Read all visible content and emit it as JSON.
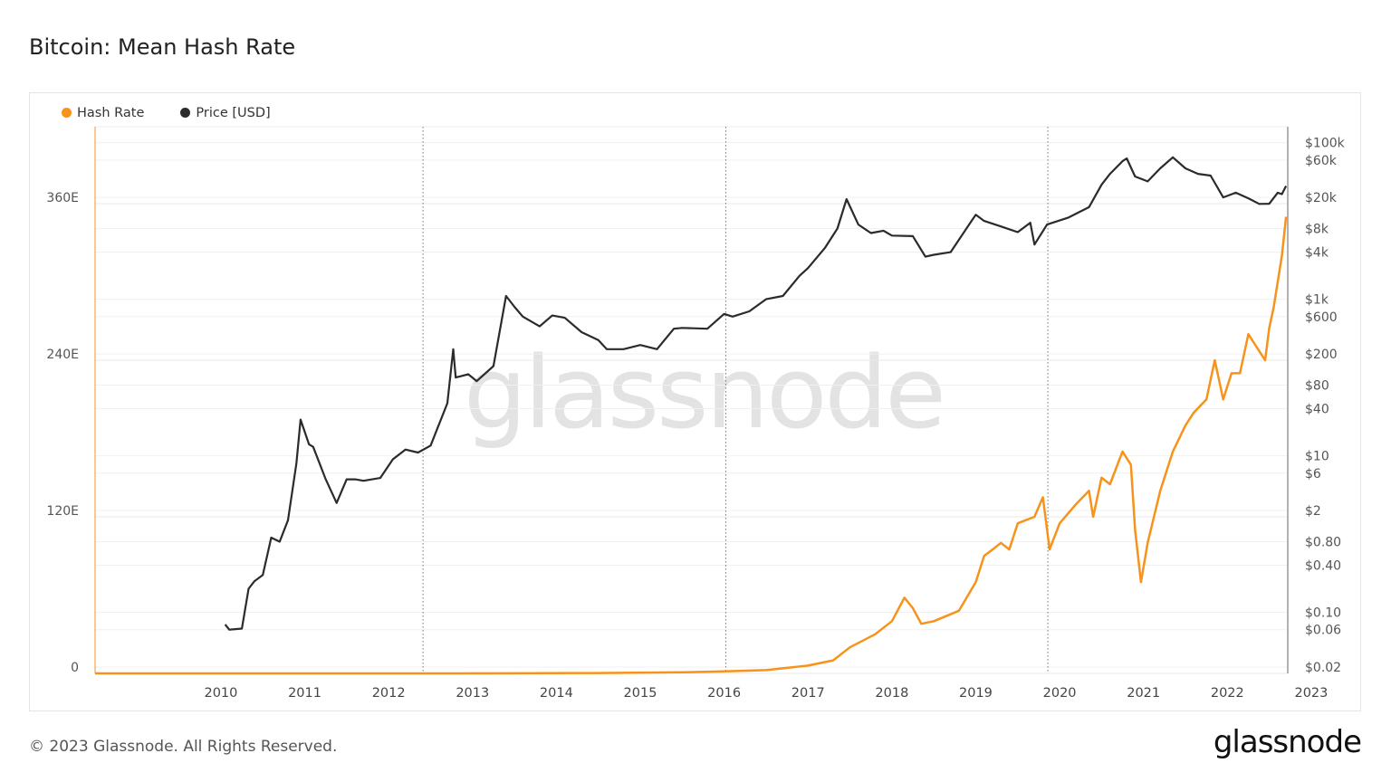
{
  "title": "Bitcoin: Mean Hash Rate",
  "footer": "© 2023 Glassnode. All Rights Reserved.",
  "logo": "glassnode",
  "watermark": "glassnode",
  "chart_data": {
    "type": "line",
    "title": "Bitcoin: Mean Hash Rate",
    "legend_position": "top-left",
    "grid": true,
    "x_range": [
      2009.0,
      2023.22
    ],
    "x_ticks": [
      "2010",
      "2011",
      "2012",
      "2013",
      "2014",
      "2015",
      "2016",
      "2017",
      "2018",
      "2019",
      "2020",
      "2021",
      "2022",
      "2023"
    ],
    "left_axis": {
      "unit": "EH/s",
      "range": [
        0,
        419
      ],
      "ticks": [
        {
          "v": 0,
          "label": "0"
        },
        {
          "v": 120,
          "label": "120E"
        },
        {
          "v": 240,
          "label": "240E"
        },
        {
          "v": 360,
          "label": "360E"
        }
      ]
    },
    "right_axis": {
      "scale": "log",
      "range": [
        0.0166,
        160000
      ],
      "ticks": [
        {
          "v": 100000,
          "label": "$100k"
        },
        {
          "v": 60000,
          "label": "$60k"
        },
        {
          "v": 20000,
          "label": "$20k"
        },
        {
          "v": 8000,
          "label": "$8k"
        },
        {
          "v": 4000,
          "label": "$4k"
        },
        {
          "v": 1000,
          "label": "$1k"
        },
        {
          "v": 600,
          "label": "$600"
        },
        {
          "v": 200,
          "label": "$200"
        },
        {
          "v": 80,
          "label": "$80"
        },
        {
          "v": 40,
          "label": "$40"
        },
        {
          "v": 10,
          "label": "$10"
        },
        {
          "v": 6,
          "label": "$6"
        },
        {
          "v": 2,
          "label": "$2"
        },
        {
          "v": 0.8,
          "label": "$0.80"
        },
        {
          "v": 0.4,
          "label": "$0.40"
        },
        {
          "v": 0.1,
          "label": "$0.10"
        },
        {
          "v": 0.06,
          "label": "$0.06"
        },
        {
          "v": 0.02,
          "label": "$0.02"
        }
      ]
    },
    "halving_markers": [
      2012.91,
      2016.52,
      2020.36
    ],
    "series": [
      {
        "name": "Hash Rate",
        "axis": "left",
        "color": "#f7931a",
        "points": [
          [
            2009.0,
            0
          ],
          [
            2013.0,
            0.01
          ],
          [
            2014.0,
            0.05
          ],
          [
            2015.0,
            0.3
          ],
          [
            2016.0,
            0.8
          ],
          [
            2016.5,
            1.5
          ],
          [
            2017.0,
            2.5
          ],
          [
            2017.5,
            6
          ],
          [
            2017.8,
            10
          ],
          [
            2018.0,
            20
          ],
          [
            2018.3,
            30
          ],
          [
            2018.5,
            40
          ],
          [
            2018.65,
            58
          ],
          [
            2018.75,
            50
          ],
          [
            2018.85,
            38
          ],
          [
            2019.0,
            40
          ],
          [
            2019.3,
            48
          ],
          [
            2019.5,
            70
          ],
          [
            2019.6,
            90
          ],
          [
            2019.7,
            95
          ],
          [
            2019.8,
            100
          ],
          [
            2019.9,
            95
          ],
          [
            2020.0,
            115
          ],
          [
            2020.2,
            120
          ],
          [
            2020.3,
            135
          ],
          [
            2020.38,
            95
          ],
          [
            2020.5,
            115
          ],
          [
            2020.7,
            130
          ],
          [
            2020.85,
            140
          ],
          [
            2020.9,
            120
          ],
          [
            2021.0,
            150
          ],
          [
            2021.1,
            145
          ],
          [
            2021.25,
            170
          ],
          [
            2021.35,
            160
          ],
          [
            2021.4,
            110
          ],
          [
            2021.47,
            70
          ],
          [
            2021.55,
            100
          ],
          [
            2021.7,
            140
          ],
          [
            2021.85,
            170
          ],
          [
            2022.0,
            190
          ],
          [
            2022.1,
            200
          ],
          [
            2022.25,
            210
          ],
          [
            2022.35,
            240
          ],
          [
            2022.45,
            210
          ],
          [
            2022.55,
            230
          ],
          [
            2022.65,
            230
          ],
          [
            2022.75,
            260
          ],
          [
            2022.85,
            250
          ],
          [
            2022.95,
            240
          ],
          [
            2023.0,
            265
          ],
          [
            2023.05,
            280
          ],
          [
            2023.1,
            300
          ],
          [
            2023.15,
            320
          ],
          [
            2023.2,
            350
          ]
        ]
      },
      {
        "name": "Price [USD]",
        "axis": "right",
        "color": "#2b2b2b",
        "points": [
          [
            2010.55,
            0.07
          ],
          [
            2010.6,
            0.06
          ],
          [
            2010.75,
            0.062
          ],
          [
            2010.83,
            0.2
          ],
          [
            2010.9,
            0.25
          ],
          [
            2011.0,
            0.3
          ],
          [
            2011.1,
            0.9
          ],
          [
            2011.2,
            0.8
          ],
          [
            2011.3,
            1.5
          ],
          [
            2011.4,
            8
          ],
          [
            2011.45,
            29
          ],
          [
            2011.55,
            14
          ],
          [
            2011.6,
            13
          ],
          [
            2011.75,
            5
          ],
          [
            2011.88,
            2.5
          ],
          [
            2012.0,
            5
          ],
          [
            2012.1,
            5
          ],
          [
            2012.2,
            4.8
          ],
          [
            2012.4,
            5.2
          ],
          [
            2012.55,
            9
          ],
          [
            2012.7,
            12
          ],
          [
            2012.85,
            11
          ],
          [
            2013.0,
            13.5
          ],
          [
            2013.2,
            47
          ],
          [
            2013.27,
            230
          ],
          [
            2013.3,
            100
          ],
          [
            2013.45,
            110
          ],
          [
            2013.55,
            90
          ],
          [
            2013.75,
            140
          ],
          [
            2013.9,
            1100
          ],
          [
            2014.0,
            800
          ],
          [
            2014.1,
            600
          ],
          [
            2014.3,
            450
          ],
          [
            2014.45,
            620
          ],
          [
            2014.6,
            580
          ],
          [
            2014.8,
            380
          ],
          [
            2015.0,
            300
          ],
          [
            2015.1,
            230
          ],
          [
            2015.3,
            230
          ],
          [
            2015.5,
            260
          ],
          [
            2015.7,
            230
          ],
          [
            2015.9,
            420
          ],
          [
            2016.0,
            430
          ],
          [
            2016.3,
            420
          ],
          [
            2016.5,
            650
          ],
          [
            2016.6,
            600
          ],
          [
            2016.8,
            700
          ],
          [
            2017.0,
            1000
          ],
          [
            2017.2,
            1100
          ],
          [
            2017.4,
            2000
          ],
          [
            2017.5,
            2500
          ],
          [
            2017.7,
            4500
          ],
          [
            2017.85,
            8000
          ],
          [
            2017.96,
            19000
          ],
          [
            2018.1,
            9000
          ],
          [
            2018.25,
            7000
          ],
          [
            2018.4,
            7500
          ],
          [
            2018.5,
            6500
          ],
          [
            2018.75,
            6400
          ],
          [
            2018.9,
            3500
          ],
          [
            2019.0,
            3700
          ],
          [
            2019.2,
            4000
          ],
          [
            2019.45,
            10000
          ],
          [
            2019.5,
            12000
          ],
          [
            2019.6,
            10000
          ],
          [
            2019.8,
            8500
          ],
          [
            2020.0,
            7200
          ],
          [
            2020.15,
            9500
          ],
          [
            2020.2,
            5000
          ],
          [
            2020.35,
            9000
          ],
          [
            2020.6,
            11000
          ],
          [
            2020.85,
            15000
          ],
          [
            2021.0,
            29000
          ],
          [
            2021.1,
            40000
          ],
          [
            2021.25,
            58000
          ],
          [
            2021.3,
            63000
          ],
          [
            2021.4,
            37000
          ],
          [
            2021.55,
            32000
          ],
          [
            2021.7,
            47000
          ],
          [
            2021.85,
            65000
          ],
          [
            2022.0,
            47000
          ],
          [
            2022.15,
            40000
          ],
          [
            2022.3,
            38000
          ],
          [
            2022.45,
            20000
          ],
          [
            2022.6,
            23000
          ],
          [
            2022.75,
            19500
          ],
          [
            2022.88,
            16500
          ],
          [
            2023.0,
            16600
          ],
          [
            2023.1,
            23000
          ],
          [
            2023.15,
            22000
          ],
          [
            2023.2,
            28000
          ]
        ]
      }
    ]
  }
}
